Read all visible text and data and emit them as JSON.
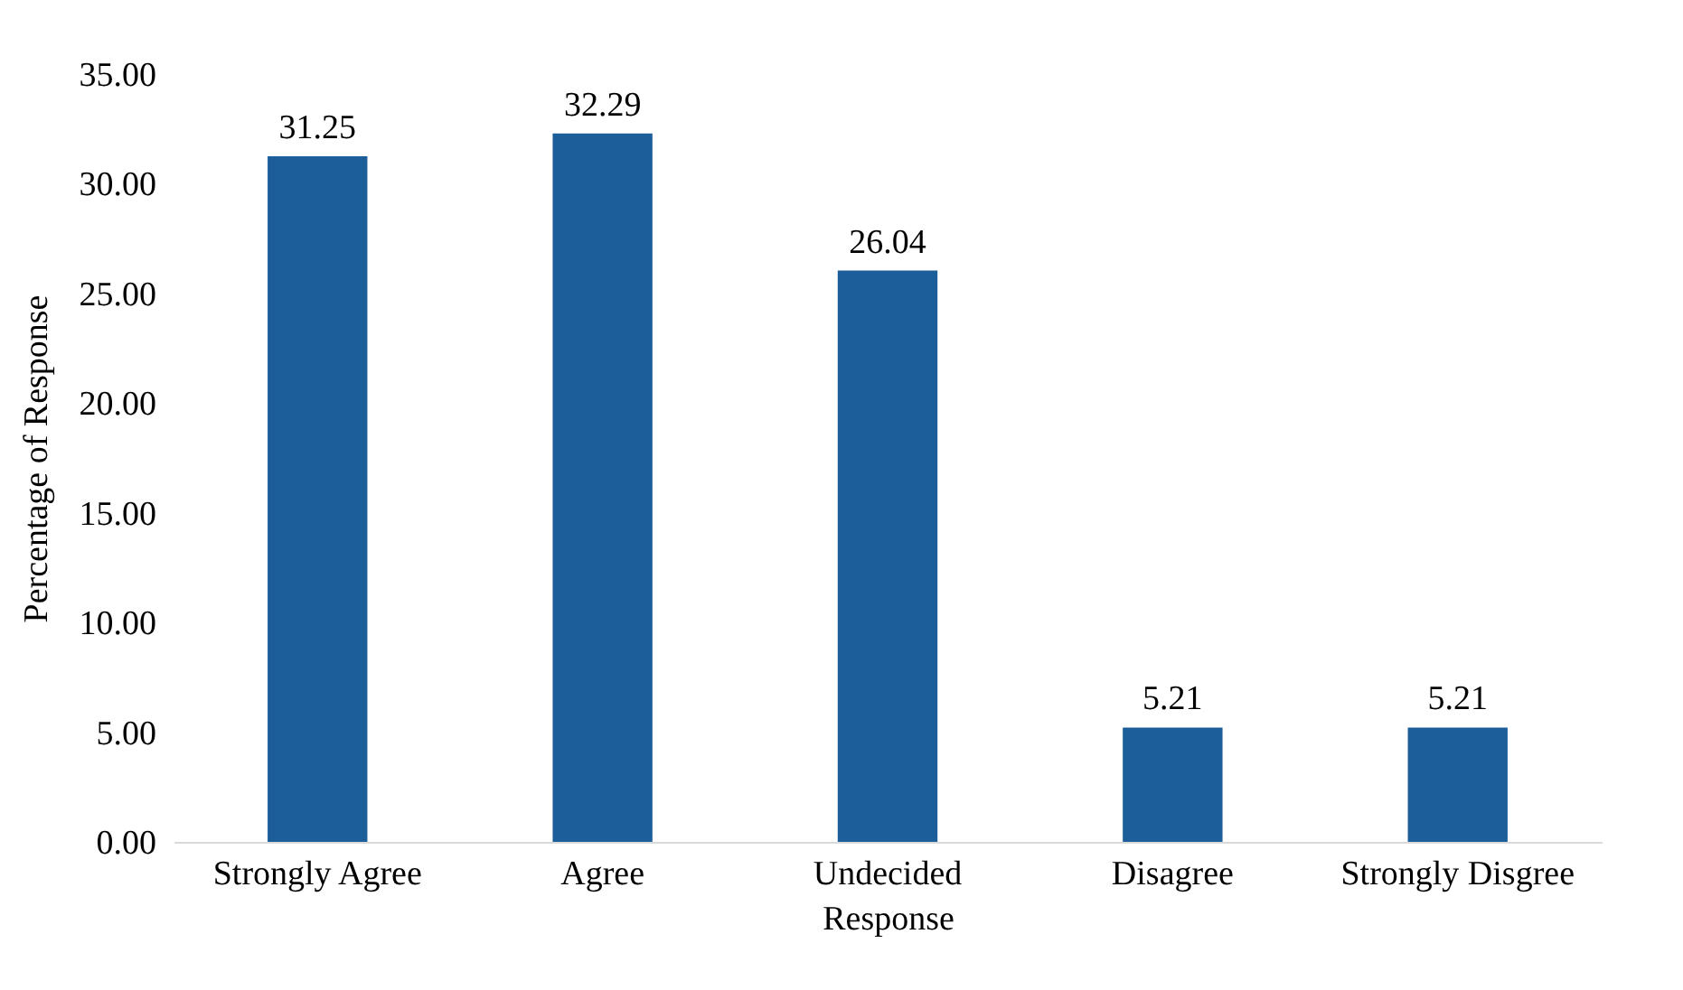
{
  "chart_data": {
    "type": "bar",
    "xlabel": "Response",
    "ylabel": "Percentage of Response",
    "categories": [
      "Strongly Agree",
      "Agree",
      "Undecided",
      "Disagree",
      "Strongly Disgree"
    ],
    "values": [
      31.25,
      32.29,
      26.04,
      5.21,
      5.21
    ],
    "color": "#1b5e99",
    "ylim": [
      0,
      35
    ],
    "yticks": [
      {
        "value": 0,
        "label": "0.00"
      },
      {
        "value": 5,
        "label": "5.00"
      },
      {
        "value": 10,
        "label": "10.00"
      },
      {
        "value": 15,
        "label": "15.00"
      },
      {
        "value": 20,
        "label": "20.00"
      },
      {
        "value": 25,
        "label": "25.00"
      },
      {
        "value": 30,
        "label": "30.00"
      },
      {
        "value": 35,
        "label": "35.00"
      }
    ],
    "grid": false,
    "data_labels": true
  }
}
